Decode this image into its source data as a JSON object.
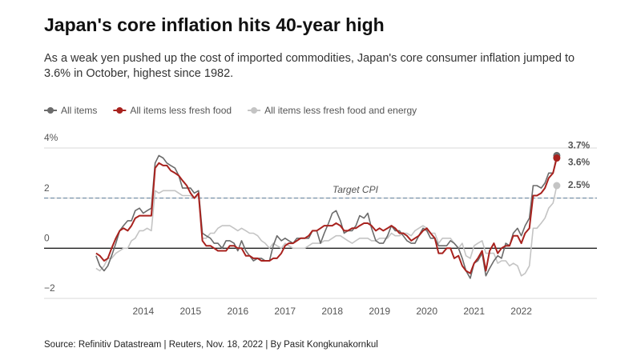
{
  "chart_data": {
    "type": "line",
    "title": "Japan's core inflation hits 40-year high",
    "subtitle": "As a weak yen pushed up the cost of imported commodities, Japan's core consumer inflation jumped to 3.6% in October, highest since 1982.",
    "source": "Source: Refinitiv Datastream | Reuters, Nov. 18, 2022 | By Pasit Kongkunakornkul",
    "x": [
      2013,
      2013.08,
      2013.17,
      2013.25,
      2013.33,
      2013.42,
      2013.5,
      2013.58,
      2013.67,
      2013.75,
      2013.83,
      2013.92,
      2014,
      2014.08,
      2014.17,
      2014.25,
      2014.33,
      2014.42,
      2014.5,
      2014.58,
      2014.67,
      2014.75,
      2014.83,
      2014.92,
      2015,
      2015.08,
      2015.17,
      2015.25,
      2015.33,
      2015.42,
      2015.5,
      2015.58,
      2015.67,
      2015.75,
      2015.83,
      2015.92,
      2016,
      2016.08,
      2016.17,
      2016.25,
      2016.33,
      2016.42,
      2016.5,
      2016.58,
      2016.67,
      2016.75,
      2016.83,
      2016.92,
      2017,
      2017.08,
      2017.17,
      2017.25,
      2017.33,
      2017.42,
      2017.5,
      2017.58,
      2017.67,
      2017.75,
      2017.83,
      2017.92,
      2018,
      2018.08,
      2018.17,
      2018.25,
      2018.33,
      2018.42,
      2018.5,
      2018.58,
      2018.67,
      2018.75,
      2018.83,
      2018.92,
      2019,
      2019.08,
      2019.17,
      2019.25,
      2019.33,
      2019.42,
      2019.5,
      2019.58,
      2019.67,
      2019.75,
      2019.83,
      2019.92,
      2020,
      2020.08,
      2020.17,
      2020.25,
      2020.33,
      2020.42,
      2020.5,
      2020.58,
      2020.67,
      2020.75,
      2020.83,
      2020.92,
      2021,
      2021.08,
      2021.17,
      2021.25,
      2021.33,
      2021.42,
      2021.5,
      2021.58,
      2021.67,
      2021.75,
      2021.83,
      2021.92,
      2022,
      2022.08,
      2022.17,
      2022.25,
      2022.33,
      2022.42,
      2022.5,
      2022.58,
      2022.67,
      2022.75
    ],
    "series": [
      {
        "name": "All items",
        "color": "#6b6b6b",
        "last_label": "3.7%",
        "values": [
          -0.3,
          -0.7,
          -0.9,
          -0.7,
          -0.3,
          0.2,
          0.7,
          0.9,
          1.1,
          1.1,
          1.5,
          1.6,
          1.4,
          1.5,
          1.6,
          3.4,
          3.7,
          3.6,
          3.4,
          3.3,
          3.2,
          2.9,
          2.4,
          2.4,
          2.4,
          2.2,
          2.3,
          0.6,
          0.5,
          0.4,
          0.2,
          0.2,
          0.0,
          0.3,
          0.3,
          0.2,
          -0.1,
          0.3,
          -0.1,
          -0.3,
          -0.5,
          -0.4,
          -0.4,
          -0.5,
          -0.5,
          0.1,
          0.5,
          0.3,
          0.4,
          0.3,
          0.2,
          0.4,
          0.4,
          0.4,
          0.4,
          0.7,
          0.7,
          0.2,
          0.6,
          1.0,
          1.4,
          1.5,
          1.1,
          0.6,
          0.7,
          0.7,
          0.9,
          1.3,
          1.2,
          1.4,
          0.8,
          0.3,
          0.2,
          0.2,
          0.5,
          0.9,
          0.7,
          0.7,
          0.5,
          0.3,
          0.2,
          0.2,
          0.5,
          0.8,
          0.7,
          0.4,
          0.4,
          0.1,
          0.1,
          0.1,
          0.3,
          0.2,
          0.0,
          -0.4,
          -0.9,
          -1.2,
          -0.6,
          -0.5,
          -0.2,
          -1.1,
          -0.8,
          -0.5,
          -0.3,
          -0.4,
          0.2,
          0.1,
          0.6,
          0.8,
          0.5,
          0.9,
          1.2,
          2.5,
          2.5,
          2.4,
          2.6,
          3.0,
          3.0,
          3.7
        ]
      },
      {
        "name": "All items less fresh food",
        "color": "#a8221e",
        "last_label": "3.6%",
        "values": [
          -0.2,
          -0.3,
          -0.5,
          -0.4,
          0.0,
          0.4,
          0.7,
          0.8,
          0.7,
          0.9,
          1.2,
          1.3,
          1.3,
          1.3,
          1.3,
          3.2,
          3.4,
          3.3,
          3.3,
          3.1,
          3.0,
          2.9,
          2.7,
          2.5,
          2.2,
          2.0,
          2.2,
          0.3,
          0.1,
          0.1,
          0.0,
          -0.1,
          -0.1,
          -0.1,
          0.1,
          0.1,
          0.0,
          0.0,
          -0.3,
          -0.3,
          -0.4,
          -0.4,
          -0.5,
          -0.5,
          -0.5,
          -0.4,
          -0.4,
          -0.2,
          0.1,
          0.2,
          0.2,
          0.3,
          0.4,
          0.4,
          0.5,
          0.7,
          0.7,
          0.8,
          0.9,
          0.9,
          0.9,
          1.0,
          0.9,
          0.7,
          0.7,
          0.8,
          0.8,
          0.9,
          1.0,
          1.0,
          0.9,
          0.7,
          0.8,
          0.7,
          0.8,
          0.9,
          0.8,
          0.6,
          0.6,
          0.5,
          0.3,
          0.4,
          0.5,
          0.7,
          0.8,
          0.6,
          0.4,
          -0.2,
          -0.2,
          0.0,
          0.0,
          -0.4,
          -0.3,
          -0.7,
          -0.9,
          -1.0,
          -0.6,
          -0.4,
          -0.1,
          -0.9,
          -0.1,
          0.2,
          -0.2,
          0.0,
          0.1,
          0.1,
          0.5,
          0.5,
          0.2,
          0.6,
          0.8,
          2.1,
          2.1,
          2.2,
          2.4,
          2.8,
          3.0,
          3.6
        ]
      },
      {
        "name": "All items less fresh food and energy",
        "color": "#c4c4c4",
        "last_label": "2.5%",
        "values": [
          -0.8,
          -0.9,
          -0.7,
          -0.4,
          -0.4,
          -0.2,
          -0.1,
          0.0,
          0.0,
          0.3,
          0.4,
          0.7,
          0.7,
          0.8,
          0.7,
          2.3,
          2.2,
          2.3,
          2.3,
          2.3,
          2.3,
          2.2,
          2.1,
          2.1,
          2.1,
          2.0,
          2.1,
          0.4,
          0.4,
          0.6,
          0.6,
          0.8,
          0.9,
          0.9,
          0.9,
          0.8,
          0.7,
          0.8,
          0.7,
          0.6,
          0.6,
          0.5,
          0.3,
          0.2,
          0.0,
          0.2,
          0.1,
          0.0,
          0.2,
          0.1,
          0.0,
          0.0,
          0.0,
          0.0,
          0.1,
          0.2,
          0.2,
          0.2,
          0.3,
          0.3,
          0.4,
          0.5,
          0.5,
          0.4,
          0.3,
          0.2,
          0.3,
          0.4,
          0.4,
          0.4,
          0.3,
          0.3,
          0.4,
          0.4,
          0.4,
          0.6,
          0.5,
          0.5,
          0.6,
          0.6,
          0.5,
          0.7,
          0.8,
          0.9,
          0.8,
          0.6,
          0.6,
          0.2,
          0.4,
          0.4,
          0.4,
          0.2,
          0.0,
          0.2,
          -0.3,
          -0.4,
          0.1,
          0.2,
          0.3,
          -0.2,
          -0.2,
          -0.2,
          -0.6,
          -0.5,
          -0.5,
          -0.7,
          -0.6,
          -0.7,
          -1.1,
          -1.0,
          -0.7,
          0.8,
          0.8,
          1.0,
          1.2,
          1.6,
          1.8,
          2.5
        ]
      }
    ],
    "xlim": [
      2011.9,
      2023.6
    ],
    "xticks": [
      2014,
      2015,
      2016,
      2017,
      2018,
      2019,
      2020,
      2021,
      2022
    ],
    "ylim": [
      -2,
      4
    ],
    "yticks": [
      {
        "value": -2,
        "label": "−2"
      },
      0,
      2,
      {
        "value": 4,
        "label": "4%"
      }
    ],
    "annotations": [
      {
        "text": "Target CPI",
        "y": 2
      }
    ]
  }
}
